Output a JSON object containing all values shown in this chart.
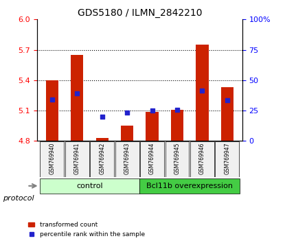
{
  "title": "GDS5180 / ILMN_2842210",
  "samples": [
    "GSM769940",
    "GSM769941",
    "GSM769942",
    "GSM769943",
    "GSM769944",
    "GSM769945",
    "GSM769946",
    "GSM769947"
  ],
  "bar_bottoms": [
    4.8,
    4.8,
    4.8,
    4.8,
    4.8,
    4.8,
    4.8,
    4.8
  ],
  "bar_tops": [
    5.4,
    5.65,
    4.83,
    4.95,
    5.09,
    5.11,
    5.75,
    5.33
  ],
  "blue_dot_y": [
    5.21,
    5.27,
    5.04,
    5.08,
    5.1,
    5.11,
    5.3,
    5.2
  ],
  "ylim": [
    4.8,
    6.0
  ],
  "y2lim": [
    0,
    100
  ],
  "yticks_left": [
    4.8,
    5.1,
    5.4,
    5.7,
    6.0
  ],
  "yticks_right": [
    0,
    25,
    50,
    75,
    100
  ],
  "ytick_labels_right": [
    "0",
    "25",
    "50",
    "75",
    "100%"
  ],
  "bar_color": "#cc2200",
  "dot_color": "#2222cc",
  "control_color": "#aaffaa",
  "overexpr_color": "#44cc44",
  "protocol_groups": {
    "control": [
      0,
      1,
      2,
      3
    ],
    "overexpression": [
      4,
      5,
      6,
      7
    ]
  },
  "protocol_label": "protocol",
  "control_label": "control",
  "overexpr_label": "Bcl11b overexpression",
  "legend_bar": "transformed count",
  "legend_dot": "percentile rank within the sample",
  "bg_color": "#f0f0f0"
}
